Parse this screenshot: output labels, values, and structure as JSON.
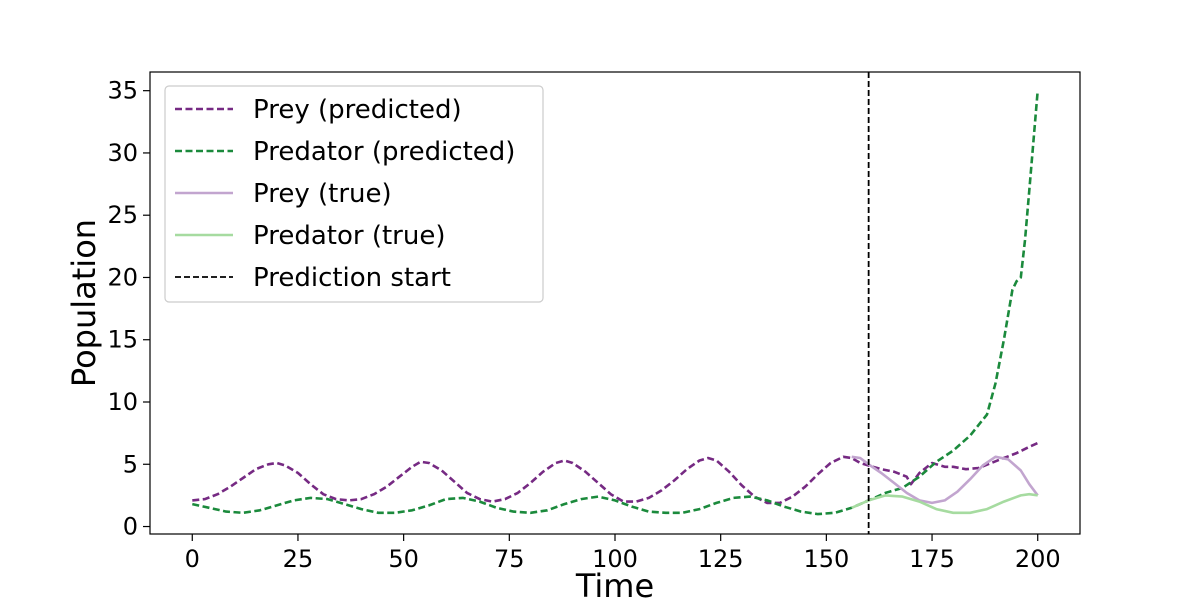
{
  "chart_data": {
    "type": "line",
    "title": "",
    "xlabel": "Time",
    "ylabel": "Population",
    "xlim": [
      -10,
      210
    ],
    "ylim": [
      -0.6,
      36.5
    ],
    "xticks": [
      0,
      25,
      50,
      75,
      100,
      125,
      150,
      175,
      200
    ],
    "xtick_labels": [
      "0",
      "25",
      "50",
      "75",
      "100",
      "125",
      "150",
      "175",
      "200"
    ],
    "yticks": [
      0,
      5,
      10,
      15,
      20,
      25,
      30,
      35
    ],
    "ytick_labels": [
      "0",
      "5",
      "10",
      "15",
      "20",
      "25",
      "30",
      "35"
    ],
    "grid": false,
    "legend_position": "upper-left",
    "prediction_start": 160,
    "series": [
      {
        "name": "Prey (predicted)",
        "color": "#762a83",
        "style": "dashed",
        "x": [
          0,
          3,
          6,
          9,
          12,
          15,
          18,
          20,
          22,
          25,
          28,
          31,
          34,
          37,
          40,
          43,
          46,
          49,
          52,
          54,
          56,
          59,
          62,
          65,
          68,
          71,
          74,
          77,
          80,
          83,
          86,
          88,
          90,
          93,
          96,
          99,
          102,
          105,
          108,
          111,
          114,
          117,
          120,
          122,
          124,
          127,
          130,
          133,
          136,
          139,
          142,
          145,
          148,
          151,
          154,
          156,
          158,
          160,
          163,
          166,
          169,
          170,
          172,
          175,
          178,
          180,
          183,
          186,
          189,
          192,
          195,
          198,
          200
        ],
        "y": [
          2.1,
          2.2,
          2.6,
          3.2,
          3.9,
          4.6,
          5.0,
          5.1,
          4.9,
          4.3,
          3.4,
          2.6,
          2.2,
          2.1,
          2.2,
          2.6,
          3.2,
          4.0,
          4.8,
          5.2,
          5.1,
          4.5,
          3.6,
          2.7,
          2.2,
          2.0,
          2.2,
          2.7,
          3.5,
          4.4,
          5.1,
          5.3,
          5.1,
          4.4,
          3.5,
          2.6,
          2.0,
          2.0,
          2.3,
          2.9,
          3.7,
          4.6,
          5.3,
          5.5,
          5.3,
          4.4,
          3.3,
          2.4,
          1.9,
          1.9,
          2.4,
          3.2,
          4.2,
          5.1,
          5.6,
          5.5,
          5.1,
          4.9,
          4.6,
          4.4,
          4.0,
          3.4,
          4.3,
          5.1,
          4.8,
          4.8,
          4.6,
          4.7,
          5.1,
          5.5,
          5.9,
          6.4,
          6.7
        ]
      },
      {
        "name": "Predator (predicted)",
        "color": "#1b8a3c",
        "style": "dashed",
        "x": [
          0,
          4,
          8,
          12,
          16,
          20,
          24,
          28,
          32,
          36,
          40,
          44,
          48,
          52,
          56,
          60,
          64,
          68,
          72,
          76,
          80,
          84,
          88,
          92,
          96,
          100,
          104,
          108,
          112,
          116,
          120,
          124,
          128,
          132,
          136,
          140,
          144,
          148,
          152,
          156,
          160,
          164,
          168,
          172,
          176,
          180,
          184,
          188,
          190,
          192,
          194,
          195,
          196,
          197,
          198,
          199,
          200
        ],
        "y": [
          1.8,
          1.5,
          1.2,
          1.1,
          1.3,
          1.7,
          2.1,
          2.3,
          2.2,
          1.8,
          1.4,
          1.1,
          1.1,
          1.3,
          1.7,
          2.2,
          2.3,
          2.0,
          1.5,
          1.2,
          1.1,
          1.3,
          1.8,
          2.2,
          2.4,
          2.1,
          1.6,
          1.2,
          1.1,
          1.1,
          1.4,
          1.9,
          2.3,
          2.4,
          2.1,
          1.6,
          1.2,
          1.0,
          1.1,
          1.5,
          2.1,
          2.7,
          3.1,
          4.0,
          5.2,
          6.1,
          7.3,
          9.0,
          11.5,
          15.0,
          19.0,
          19.7,
          20.0,
          23.0,
          27.0,
          31.0,
          35.0
        ]
      },
      {
        "name": "Prey (true)",
        "color": "#c2a5cf",
        "style": "solid",
        "x": [
          156,
          158,
          160,
          163,
          166,
          169,
          172,
          175,
          178,
          181,
          184,
          187,
          190,
          193,
          196,
          198,
          200
        ],
        "y": [
          5.6,
          5.5,
          5.0,
          4.3,
          3.5,
          2.7,
          2.1,
          1.9,
          2.1,
          2.8,
          3.8,
          4.9,
          5.6,
          5.4,
          4.5,
          3.4,
          2.5
        ]
      },
      {
        "name": "Predator (true)",
        "color": "#a6dba0",
        "style": "solid",
        "x": [
          156,
          160,
          164,
          168,
          172,
          176,
          180,
          184,
          188,
          192,
          196,
          198,
          200
        ],
        "y": [
          1.5,
          2.1,
          2.5,
          2.4,
          2.0,
          1.4,
          1.1,
          1.1,
          1.4,
          2.0,
          2.5,
          2.6,
          2.5
        ]
      }
    ],
    "legend": [
      {
        "label": "Prey (predicted)",
        "color": "#762a83",
        "style": "dashed"
      },
      {
        "label": "Predator (predicted)",
        "color": "#1b8a3c",
        "style": "dashed"
      },
      {
        "label": "Prey (true)",
        "color": "#c2a5cf",
        "style": "solid"
      },
      {
        "label": "Predator (true)",
        "color": "#a6dba0",
        "style": "solid"
      },
      {
        "label": "Prediction start",
        "color": "#000000",
        "style": "dashed"
      }
    ]
  }
}
